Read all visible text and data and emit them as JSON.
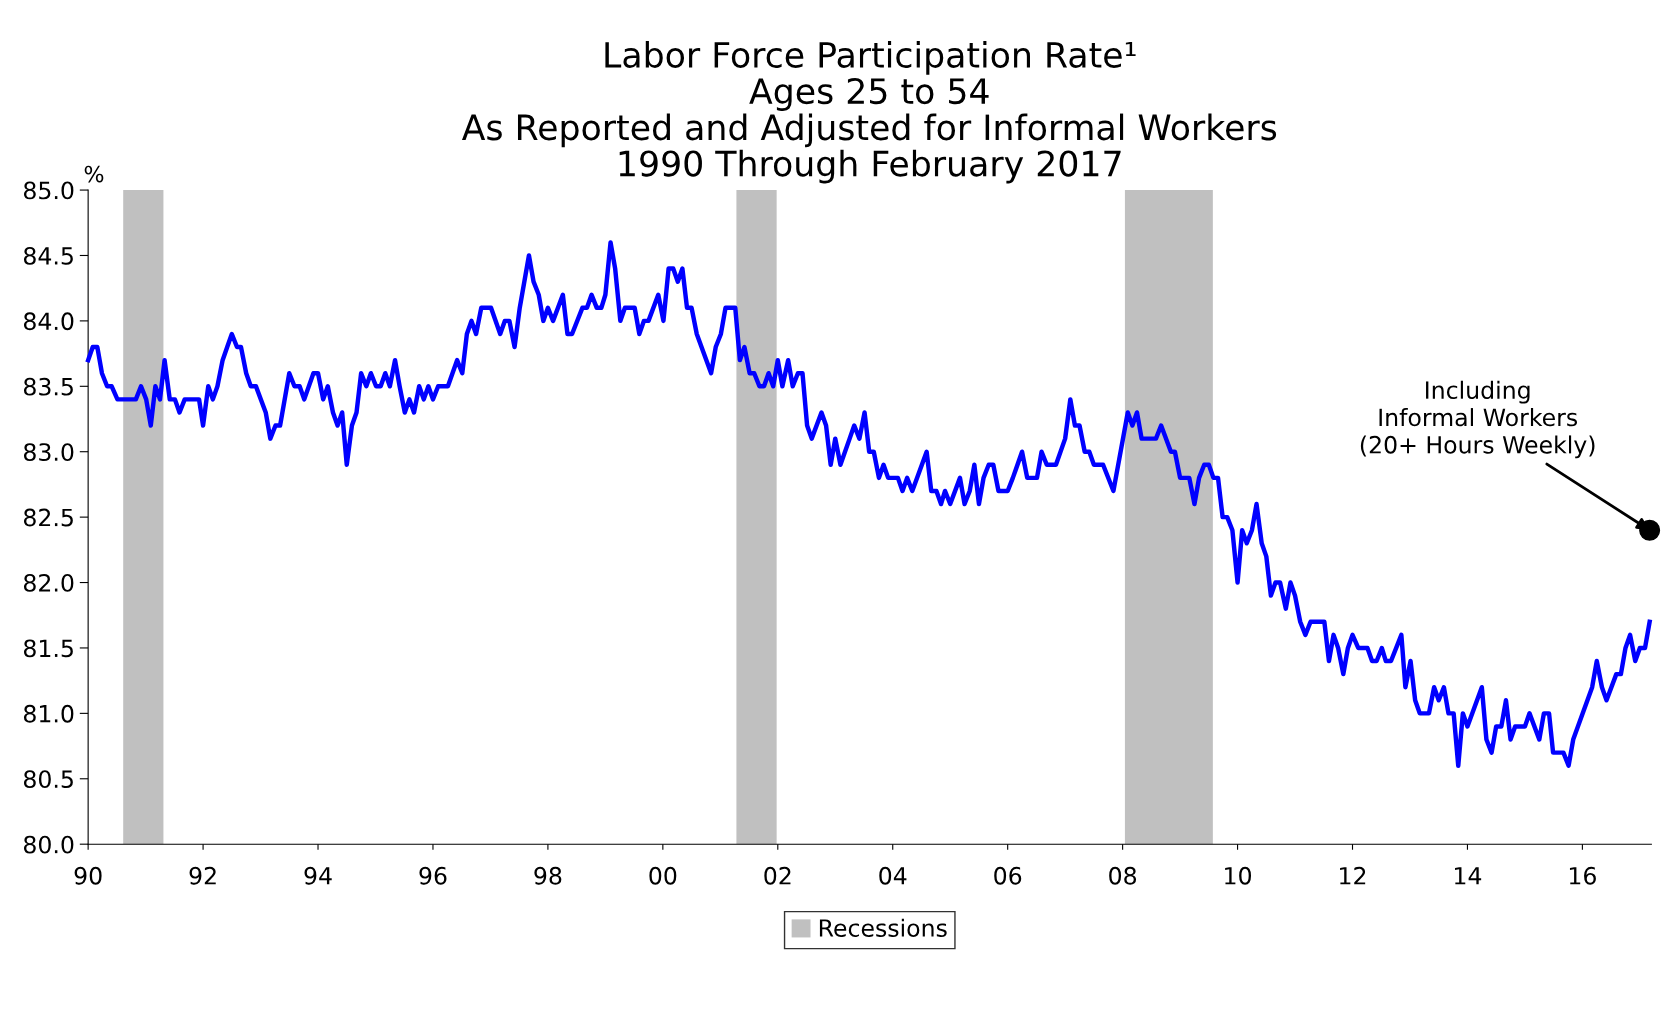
{
  "chart_data": {
    "type": "line",
    "title": "Labor Force Participation Rate¹\nAges 25 to 54\nAs Reported and Adjusted for Informal Workers\n1990 Through February 2017",
    "ylabel": "%",
    "xlim": [
      1990,
      2017.2
    ],
    "xticks": [
      {
        "value": 1990,
        "label": "90"
      },
      {
        "value": 1992,
        "label": "92"
      },
      {
        "value": 1994,
        "label": "94"
      },
      {
        "value": 1996,
        "label": "96"
      },
      {
        "value": 1998,
        "label": "98"
      },
      {
        "value": 2000,
        "label": "00"
      },
      {
        "value": 2002,
        "label": "02"
      },
      {
        "value": 2004,
        "label": "04"
      },
      {
        "value": 2006,
        "label": "06"
      },
      {
        "value": 2008,
        "label": "08"
      },
      {
        "value": 2010,
        "label": "10"
      },
      {
        "value": 2012,
        "label": "12"
      },
      {
        "value": 2014,
        "label": "14"
      },
      {
        "value": 2016,
        "label": "16"
      }
    ],
    "ylim": [
      80,
      85
    ],
    "yticks": [
      {
        "value": 80,
        "label": "80.0"
      },
      {
        "value": 80.5,
        "label": "80.5"
      },
      {
        "value": 81,
        "label": "81.0"
      },
      {
        "value": 81.5,
        "label": "81.5"
      },
      {
        "value": 82,
        "label": "82.0"
      },
      {
        "value": 82.5,
        "label": "82.5"
      },
      {
        "value": 83,
        "label": "83.0"
      },
      {
        "value": 83.5,
        "label": "83.5"
      },
      {
        "value": 84,
        "label": "84.0"
      },
      {
        "value": 84.5,
        "label": "84.5"
      },
      {
        "value": 85,
        "label": "85.0"
      }
    ],
    "grid": false,
    "legend": "bottom",
    "bands": [
      {
        "axis": "x",
        "from": 1990.61,
        "to": 1991.31,
        "label": "Recessions",
        "color": "#c0c0c0"
      },
      {
        "axis": "x",
        "from": 2001.28,
        "to": 2001.98,
        "color": "#c0c0c0"
      },
      {
        "axis": "x",
        "from": 2008.04,
        "to": 2009.57,
        "color": "#c0c0c0"
      }
    ],
    "annotations": [
      {
        "text": "Including\nInformal Workers\n(20+ Hours Weekly)",
        "x": 2017.17,
        "y": 82.4
      }
    ],
    "series": [
      {
        "type": "line",
        "color": "#0000ff",
        "x": [
          1990.0,
          1990.08,
          1990.16,
          1990.24,
          1990.33,
          1990.41,
          1990.51,
          1990.83,
          1990.92,
          1991.01,
          1991.09,
          1991.17,
          1991.25,
          1991.33,
          1991.42,
          1991.51,
          1991.59,
          1991.68,
          1991.93,
          1992.0,
          1992.09,
          1992.17,
          1992.25,
          1992.34,
          1992.42,
          1992.5,
          1992.59,
          1992.66,
          1992.75,
          1992.83,
          1992.92,
          1993.09,
          1993.17,
          1993.26,
          1993.34,
          1993.5,
          1993.59,
          1993.68,
          1993.76,
          1993.92,
          1994.0,
          1994.09,
          1994.17,
          1994.26,
          1994.34,
          1994.42,
          1994.5,
          1994.59,
          1994.67,
          1994.75,
          1994.84,
          1994.92,
          1995.01,
          1995.09,
          1995.17,
          1995.25,
          1995.34,
          1995.42,
          1995.51,
          1995.59,
          1995.67,
          1995.76,
          1995.84,
          1995.92,
          1996.0,
          1996.09,
          1996.26,
          1996.42,
          1996.51,
          1996.59,
          1996.67,
          1996.75,
          1996.84,
          1997.01,
          1997.17,
          1997.25,
          1997.33,
          1997.42,
          1997.51,
          1997.67,
          1997.75,
          1997.84,
          1997.92,
          1998.0,
          1998.09,
          1998.26,
          1998.34,
          1998.42,
          1998.6,
          1998.68,
          1998.76,
          1998.85,
          1998.93,
          1999.0,
          1999.09,
          1999.17,
          1999.26,
          1999.34,
          1999.51,
          1999.59,
          1999.67,
          1999.75,
          1999.92,
          2000.01,
          2000.1,
          2000.18,
          2000.26,
          2000.34,
          2000.42,
          2000.5,
          2000.59,
          2000.84,
          2000.92,
          2001.01,
          2001.09,
          2001.26,
          2001.34,
          2001.42,
          2001.51,
          2001.59,
          2001.68,
          2001.76,
          2001.84,
          2001.92,
          2002.0,
          2002.08,
          2002.18,
          2002.26,
          2002.35,
          2002.43,
          2002.51,
          2002.59,
          2002.76,
          2002.84,
          2002.92,
          2003.0,
          2003.09,
          2003.25,
          2003.33,
          2003.42,
          2003.51,
          2003.59,
          2003.67,
          2003.76,
          2003.84,
          2003.92,
          2004.09,
          2004.17,
          2004.25,
          2004.34,
          2004.59,
          2004.67,
          2004.76,
          2004.84,
          2004.91,
          2005.0,
          2005.17,
          2005.25,
          2005.34,
          2005.42,
          2005.5,
          2005.58,
          2005.67,
          2005.75,
          2005.84,
          2006.0,
          2006.09,
          2006.25,
          2006.34,
          2006.51,
          2006.59,
          2006.68,
          2006.84,
          2007.0,
          2007.09,
          2007.17,
          2007.25,
          2007.34,
          2007.42,
          2007.5,
          2007.66,
          2007.84,
          2008.09,
          2008.17,
          2008.25,
          2008.33,
          2008.58,
          2008.67,
          2008.84,
          2008.91,
          2009.0,
          2009.16,
          2009.25,
          2009.33,
          2009.42,
          2009.5,
          2009.58,
          2009.66,
          2009.74,
          2009.82,
          2009.91,
          2010.0,
          2010.08,
          2010.16,
          2010.25,
          2010.33,
          2010.42,
          2010.5,
          2010.58,
          2010.66,
          2010.74,
          2010.84,
          2010.92,
          2011.0,
          2011.09,
          2011.18,
          2011.27,
          2011.51,
          2011.59,
          2011.67,
          2011.75,
          2011.84,
          2011.92,
          2012.0,
          2012.1,
          2012.26,
          2012.34,
          2012.42,
          2012.51,
          2012.58,
          2012.67,
          2012.85,
          2012.92,
          2013.01,
          2013.09,
          2013.17,
          2013.33,
          2013.42,
          2013.5,
          2013.59,
          2013.67,
          2013.76,
          2013.84,
          2013.92,
          2014.0,
          2014.25,
          2014.33,
          2014.42,
          2014.5,
          2014.59,
          2014.67,
          2014.75,
          2014.83,
          2015.0,
          2015.08,
          2015.25,
          2015.33,
          2015.42,
          2015.49,
          2015.67,
          2015.76,
          2015.84,
          2016.17,
          2016.25,
          2016.34,
          2016.42,
          2016.59,
          2016.67,
          2016.75,
          2016.83,
          2016.92,
          2017.0,
          2017.09,
          2017.17
        ],
        "values": [
          83.7,
          83.8,
          83.8,
          83.6,
          83.5,
          83.5,
          83.4,
          83.4,
          83.5,
          83.4,
          83.2,
          83.5,
          83.4,
          83.7,
          83.4,
          83.4,
          83.3,
          83.4,
          83.4,
          83.2,
          83.5,
          83.4,
          83.5,
          83.7,
          83.8,
          83.9,
          83.8,
          83.8,
          83.6,
          83.5,
          83.5,
          83.3,
          83.1,
          83.2,
          83.2,
          83.6,
          83.5,
          83.5,
          83.4,
          83.6,
          83.6,
          83.4,
          83.5,
          83.3,
          83.2,
          83.3,
          82.9,
          83.2,
          83.3,
          83.6,
          83.5,
          83.6,
          83.5,
          83.5,
          83.6,
          83.5,
          83.7,
          83.5,
          83.3,
          83.4,
          83.3,
          83.5,
          83.4,
          83.5,
          83.4,
          83.5,
          83.5,
          83.7,
          83.6,
          83.9,
          84.0,
          83.9,
          84.1,
          84.1,
          83.9,
          84.0,
          84.0,
          83.8,
          84.1,
          84.5,
          84.3,
          84.2,
          84.0,
          84.1,
          84.0,
          84.2,
          83.9,
          83.9,
          84.1,
          84.1,
          84.2,
          84.1,
          84.1,
          84.2,
          84.6,
          84.4,
          84.0,
          84.1,
          84.1,
          83.9,
          84.0,
          84.0,
          84.2,
          84.0,
          84.4,
          84.4,
          84.3,
          84.4,
          84.1,
          84.1,
          83.9,
          83.6,
          83.8,
          83.9,
          84.1,
          84.1,
          83.7,
          83.8,
          83.6,
          83.6,
          83.5,
          83.5,
          83.6,
          83.5,
          83.7,
          83.5,
          83.7,
          83.5,
          83.6,
          83.6,
          83.2,
          83.1,
          83.3,
          83.2,
          82.9,
          83.1,
          82.9,
          83.1,
          83.2,
          83.1,
          83.3,
          83.0,
          83.0,
          82.8,
          82.9,
          82.8,
          82.8,
          82.7,
          82.8,
          82.7,
          83.0,
          82.7,
          82.7,
          82.6,
          82.7,
          82.6,
          82.8,
          82.6,
          82.7,
          82.9,
          82.6,
          82.8,
          82.9,
          82.9,
          82.7,
          82.7,
          82.8,
          83.0,
          82.8,
          82.8,
          83.0,
          82.9,
          82.9,
          83.1,
          83.4,
          83.2,
          83.2,
          83.0,
          83.0,
          82.9,
          82.9,
          82.7,
          83.3,
          83.2,
          83.3,
          83.1,
          83.1,
          83.2,
          83.0,
          83.0,
          82.8,
          82.8,
          82.6,
          82.8,
          82.9,
          82.9,
          82.8,
          82.8,
          82.5,
          82.5,
          82.4,
          82.0,
          82.4,
          82.3,
          82.4,
          82.6,
          82.3,
          82.2,
          81.9,
          82.0,
          82.0,
          81.8,
          82.0,
          81.9,
          81.7,
          81.6,
          81.7,
          81.7,
          81.4,
          81.6,
          81.5,
          81.3,
          81.5,
          81.6,
          81.5,
          81.5,
          81.4,
          81.4,
          81.5,
          81.4,
          81.4,
          81.6,
          81.2,
          81.4,
          81.1,
          81.0,
          81.0,
          81.2,
          81.1,
          81.2,
          81.0,
          81.0,
          80.6,
          81.0,
          80.9,
          81.2,
          80.8,
          80.7,
          80.9,
          80.9,
          81.1,
          80.8,
          80.9,
          80.9,
          81.0,
          80.8,
          81.0,
          81.0,
          80.7,
          80.7,
          80.6,
          80.8,
          81.2,
          81.4,
          81.2,
          81.1,
          81.3,
          81.3,
          81.5,
          81.6,
          81.4,
          81.5,
          81.5,
          81.7
        ]
      },
      {
        "type": "scatter",
        "color": "#000000",
        "marker": "circle",
        "x": [
          2017.17
        ],
        "values": [
          82.4
        ]
      }
    ]
  }
}
